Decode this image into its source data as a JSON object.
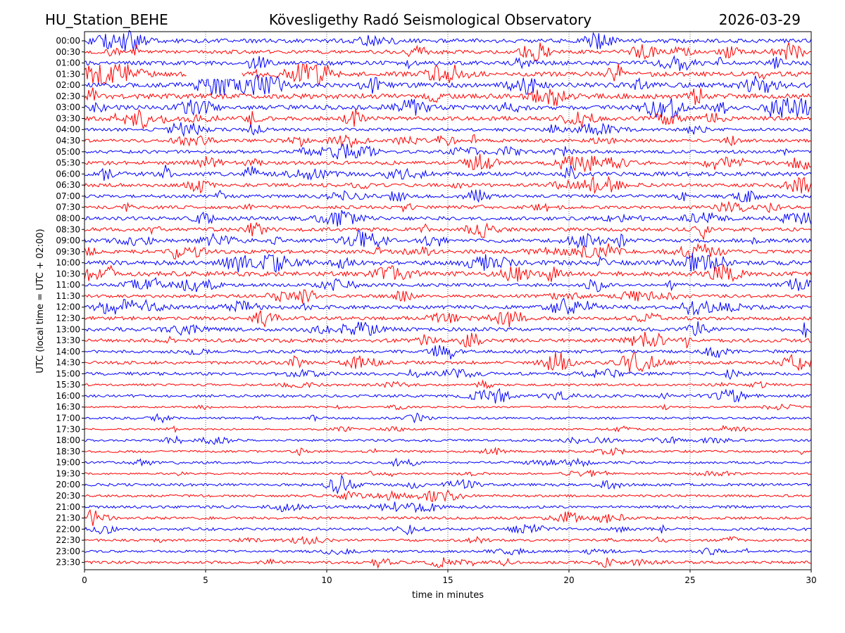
{
  "header": {
    "station": "HU_Station_BEHE",
    "observatory": "Kövesligethy Radó Seismological Observatory",
    "date": "2026-03-29"
  },
  "chart_data": {
    "type": "line",
    "title": "Kövesligethy Radó Seismological Observatory",
    "xlabel": "time in minutes",
    "ylabel": "UTC (local time = UTC + 02:00)",
    "xlim": [
      0,
      30
    ],
    "xticks": [
      0,
      5,
      10,
      15,
      20,
      25,
      30
    ],
    "grid": "vertical dotted at 5-minute intervals",
    "trace_colors": [
      "#0000ff",
      "#ff0000"
    ],
    "rows": [
      {
        "label": "00:00",
        "amp": 0.9
      },
      {
        "label": "00:30",
        "amp": 0.8
      },
      {
        "label": "01:00",
        "amp": 0.9
      },
      {
        "label": "01:30",
        "amp": 1.0
      },
      {
        "label": "02:00",
        "amp": 1.1
      },
      {
        "label": "02:30",
        "amp": 1.1
      },
      {
        "label": "03:00",
        "amp": 1.0
      },
      {
        "label": "03:30",
        "amp": 0.9
      },
      {
        "label": "04:00",
        "amp": 0.7
      },
      {
        "label": "04:30",
        "amp": 0.7
      },
      {
        "label": "05:00",
        "amp": 0.7
      },
      {
        "label": "05:30",
        "amp": 0.8
      },
      {
        "label": "06:00",
        "amp": 0.9
      },
      {
        "label": "06:30",
        "amp": 0.8
      },
      {
        "label": "07:00",
        "amp": 0.7
      },
      {
        "label": "07:30",
        "amp": 0.7
      },
      {
        "label": "08:00",
        "amp": 0.8
      },
      {
        "label": "08:30",
        "amp": 0.8
      },
      {
        "label": "09:00",
        "amp": 0.8
      },
      {
        "label": "09:30",
        "amp": 0.8
      },
      {
        "label": "10:00",
        "amp": 1.0
      },
      {
        "label": "10:30",
        "amp": 1.0
      },
      {
        "label": "11:00",
        "amp": 0.7
      },
      {
        "label": "11:30",
        "amp": 0.7
      },
      {
        "label": "12:00",
        "amp": 0.8
      },
      {
        "label": "12:30",
        "amp": 0.8
      },
      {
        "label": "13:00",
        "amp": 0.8
      },
      {
        "label": "13:30",
        "amp": 0.8
      },
      {
        "label": "14:00",
        "amp": 0.7
      },
      {
        "label": "14:30",
        "amp": 0.7
      },
      {
        "label": "15:00",
        "amp": 0.7
      },
      {
        "label": "15:30",
        "amp": 0.5
      },
      {
        "label": "16:00",
        "amp": 0.6
      },
      {
        "label": "16:30",
        "amp": 0.4
      },
      {
        "label": "17:00",
        "amp": 0.5
      },
      {
        "label": "17:30",
        "amp": 0.4
      },
      {
        "label": "18:00",
        "amp": 0.5
      },
      {
        "label": "18:30",
        "amp": 0.5
      },
      {
        "label": "19:00",
        "amp": 0.5
      },
      {
        "label": "19:30",
        "amp": 0.4
      },
      {
        "label": "20:00",
        "amp": 0.6
      },
      {
        "label": "20:30",
        "amp": 0.5
      },
      {
        "label": "21:00",
        "amp": 0.6
      },
      {
        "label": "21:30",
        "amp": 0.6
      },
      {
        "label": "22:00",
        "amp": 0.6
      },
      {
        "label": "22:30",
        "amp": 0.5
      },
      {
        "label": "23:00",
        "amp": 0.5
      },
      {
        "label": "23:30",
        "amp": 0.6
      }
    ]
  }
}
